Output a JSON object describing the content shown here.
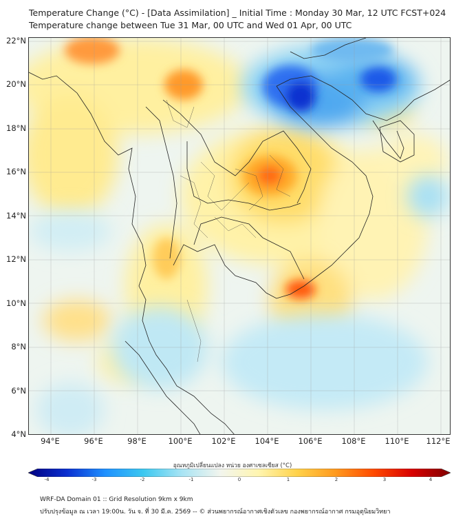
{
  "header": {
    "line1": "Temperature Change (°C) - [Data Assimilation] _ Initial Time : Monday 30 Mar, 12 UTC FCST+024",
    "line2": "Temperature change between Tue 31 Mar, 00 UTC and Wed 01 Apr, 00 UTC"
  },
  "axes": {
    "lat_labels": [
      "22°N",
      "20°N",
      "18°N",
      "16°N",
      "14°N",
      "12°N",
      "10°N",
      "8°N",
      "6°N",
      "4°N"
    ],
    "lon_labels": [
      "94°E",
      "96°E",
      "98°E",
      "100°E",
      "102°E",
      "104°E",
      "106°E",
      "108°E",
      "110°E",
      "112°E"
    ]
  },
  "colorbar": {
    "title": "อุณหภูมิเปลี่ยนแปลง หน่วย องศาเซลเซียส (°C)",
    "ticks": [
      "-4",
      "-3",
      "-2",
      "-1",
      "0",
      "1",
      "2",
      "3",
      "4"
    ],
    "colors": [
      "#000080",
      "#0a2fd0",
      "#1e90ff",
      "#3cc8f0",
      "#a8e4f4",
      "#f2f5ee",
      "#fff5b0",
      "#ffd24a",
      "#ff9a1e",
      "#ff4a00",
      "#d80000",
      "#800000"
    ]
  },
  "footer": {
    "line1": "WRF-DA Domain 01 :: Grid Resolution 9km x 9km",
    "line2": "ปรับปรุงข้อมูล ณ เวลา 19:00น. วัน จ. ที่ 30 มี.ค. 2569 -- © ส่วนพยากรณ์อากาศเชิงตัวเลข กองพยากรณ์อากาศ กรมอุตุนิยมวิทยา"
  }
}
